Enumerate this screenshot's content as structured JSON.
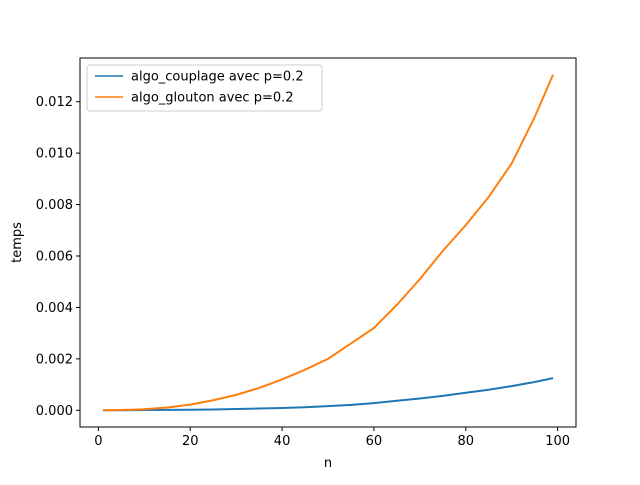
{
  "chart_data": {
    "type": "line",
    "title": "",
    "xlabel": "n",
    "ylabel": "temps",
    "xlim": [
      -4,
      104
    ],
    "ylim": [
      -0.00065,
      0.0137
    ],
    "xticks": [
      0,
      20,
      40,
      60,
      80,
      100
    ],
    "xtick_labels": [
      "0",
      "20",
      "40",
      "60",
      "80",
      "100"
    ],
    "yticks": [
      0,
      0.002,
      0.004,
      0.006,
      0.008,
      0.01,
      0.012
    ],
    "ytick_labels": [
      "0.000",
      "0.002",
      "0.004",
      "0.006",
      "0.008",
      "0.010",
      "0.012"
    ],
    "grid": false,
    "legend_position": "upper-left",
    "series": [
      {
        "name": "algo_couplage avec p=0.2",
        "color": "#1f77b4",
        "x": [
          1,
          5,
          10,
          15,
          20,
          25,
          30,
          35,
          40,
          45,
          50,
          55,
          60,
          65,
          70,
          75,
          80,
          85,
          90,
          95,
          99
        ],
        "values": [
          0.0,
          0.0,
          1e-05,
          1.5e-05,
          2e-05,
          3e-05,
          5e-05,
          7e-05,
          9e-05,
          0.00012,
          0.00016,
          0.00021,
          0.00028,
          0.00037,
          0.00046,
          0.00056,
          0.00068,
          0.0008,
          0.00094,
          0.0011,
          0.00125
        ]
      },
      {
        "name": "algo_glouton avec p=0.2",
        "color": "#ff7f0e",
        "x": [
          1,
          5,
          10,
          15,
          20,
          25,
          30,
          35,
          40,
          45,
          50,
          55,
          60,
          65,
          70,
          75,
          80,
          85,
          90,
          95,
          99
        ],
        "values": [
          0.0,
          1e-05,
          4e-05,
          0.00011,
          0.00022,
          0.00039,
          0.0006,
          0.00087,
          0.0012,
          0.00158,
          0.002,
          0.0026,
          0.0032,
          0.0041,
          0.0051,
          0.0062,
          0.0072,
          0.0083,
          0.0096,
          0.0114,
          0.01305
        ]
      }
    ]
  }
}
